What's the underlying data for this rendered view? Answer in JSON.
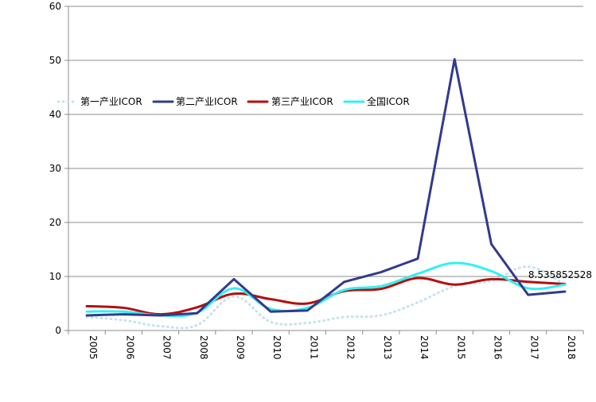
{
  "chart_data": {
    "type": "line",
    "title": "",
    "xlabel": "",
    "ylabel": "",
    "ylim": [
      0,
      60
    ],
    "y_ticks": [
      "0",
      "10",
      "20",
      "30",
      "40",
      "50",
      "60"
    ],
    "categories": [
      "2005",
      "2006",
      "2007",
      "2008",
      "2009",
      "2010",
      "2011",
      "2012",
      "2013",
      "2014",
      "2015",
      "2016",
      "2017",
      "2018"
    ],
    "grid": "horizontal",
    "legend_position": "top-left",
    "series": [
      {
        "name": "第一产业ICOR",
        "color": "#c5e3ec",
        "style": "dotted",
        "values": [
          2.5,
          1.9,
          0.8,
          1.0,
          6.3,
          1.6,
          1.4,
          2.5,
          2.8,
          5.2,
          8.2,
          9.2,
          11.8,
          8.5
        ]
      },
      {
        "name": "第二产业ICOR",
        "color": "#333a8c",
        "style": "solid",
        "values": [
          2.8,
          3.0,
          2.8,
          3.2,
          9.5,
          3.5,
          3.7,
          9.0,
          10.8,
          13.3,
          50.2,
          16.0,
          6.6,
          7.2
        ]
      },
      {
        "name": "第三产业ICOR",
        "color": "#b40f0f",
        "style": "solid",
        "values": [
          4.5,
          4.2,
          3.0,
          4.3,
          6.8,
          5.8,
          5.0,
          7.3,
          7.7,
          9.7,
          8.5,
          9.5,
          9.0,
          8.6
        ]
      },
      {
        "name": "全国ICOR",
        "color": "#33f0f0",
        "style": "solid",
        "values": [
          3.5,
          3.5,
          2.8,
          3.3,
          7.8,
          4.0,
          4.2,
          7.5,
          8.2,
          10.5,
          12.5,
          11.0,
          7.8,
          8.5
        ]
      }
    ],
    "annotations": [
      {
        "text": "8.535852528",
        "category": "2018",
        "series": "全国ICOR"
      }
    ]
  }
}
